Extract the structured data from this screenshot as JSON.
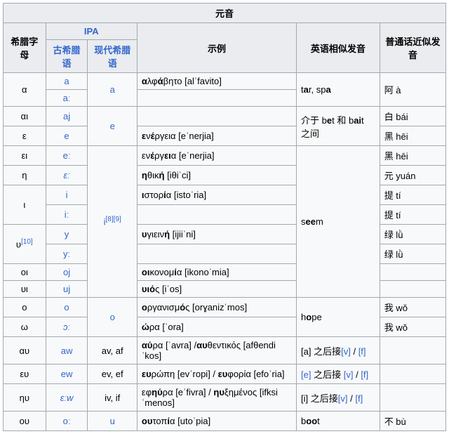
{
  "title": "元音",
  "headers": {
    "greek_letter": "希腊字母",
    "ipa": "IPA",
    "ancient": "古希腊语",
    "modern": "现代希腊语",
    "example": "示例",
    "english": "英语相似发音",
    "mandarin": "普通话近似发音"
  },
  "refs": {
    "r10": "[10]",
    "r89": "[8][9]"
  },
  "content": {
    "english_tar": "tar, spa",
    "english_bet": "介于 bet 和 bait 之间",
    "english_seem": "seem",
    "english_hope": "hope",
    "english_boot": "boot",
    "between_prefix": "介于 b",
    "between_mid": "t 和 b",
    "between_suffix": "t 之间",
    "english_1": "[a] 之后接",
    "english_2": " 之后接 ",
    "english_3": "[i] 之后接",
    "zh_a": "阿 à",
    "zh_bai": "白 bái",
    "zh_hei": "黑 hēi",
    "zh_yuan": "元 yuán",
    "zh_ti": "提 tí",
    "zh_lv": "绿 lǜ",
    "zh_wo": "我 wǒ",
    "zh_bu": "不 bù"
  },
  "links": {
    "a": "a",
    "a_long": "aː",
    "aj": "aj",
    "e": "e",
    "e_long": "eː",
    "e_ital": "ɛː",
    "i": "i",
    "i_long": "iː",
    "i_mod": "i",
    "y": "y",
    "y_long": "yː",
    "oj": "oj",
    "uj": "uj",
    "o": "o",
    "o_mod": "o",
    "o_ital": "ɔː",
    "aw": "aw",
    "ew": "ew",
    "ev": "ev, ef",
    "av": "av, af",
    "iv": "iv, if",
    "ew_ital": "ɛːw",
    "o_long": "oː",
    "u": "u",
    "v": "[v]",
    "f": "[f]",
    "e_br": "[e]",
    "slash": " / "
  },
  "rows": [
    {
      "gl": "α",
      "ex": "αλφάβητο [alˈfavito]",
      "bold_ex": [
        "",
        "α",
        "λφ",
        "ά",
        "βητο [alˈfavito]"
      ]
    },
    {
      "gl": "αι",
      "ex": ""
    },
    {
      "gl": "ε",
      "ex": "ενέργεια [eˈnerjia]",
      "bold_ex": [
        "",
        "ε",
        "ν",
        "έ",
        "ργεια [eˈnerjia]"
      ]
    },
    {
      "gl": "ει",
      "ex": "ενέργεια [eˈnerjia]",
      "bold_ex": [
        "εν",
        "έ",
        "ργ",
        "ει",
        "α [eˈnerjia]"
      ]
    },
    {
      "gl": "η",
      "ex": "ηθική [iθiˈci]",
      "bold_ex": [
        "",
        "η",
        "θικ",
        "ή",
        " [iθiˈci]"
      ]
    },
    {
      "gl": "ι",
      "ex": "ιστορία [istoˈria]",
      "bold_ex": [
        "",
        "ι",
        "στορ",
        "ί",
        "α [istoˈria]"
      ]
    },
    {
      "gl": "υ",
      "ex": "υγιεινή [ijiiˈni]",
      "bold_ex": [
        "",
        "υ",
        "γιειν",
        "ή",
        " [ijiiˈni]"
      ]
    },
    {
      "gl": "οι",
      "ex": "οικονομία [ikonoˈmia]",
      "bold_ex": [
        "",
        "οι",
        "κονομ",
        "ί",
        "α [ikonoˈmia]"
      ]
    },
    {
      "gl": "υι",
      "ex": "υιός [iˈos]",
      "bold_ex": [
        "",
        "υι",
        "",
        "ό",
        "ς [iˈos]"
      ]
    },
    {
      "gl": "ο",
      "ex": "οργανισμός [orɣanizˈmos]",
      "bold_ex": [
        "",
        "ο",
        "ργανισμ",
        "ό",
        "ς [orɣanizˈmos]"
      ]
    },
    {
      "gl": "ω",
      "ex": "ώρα [ˈora]",
      "bold_ex": [
        "",
        "ώ",
        "ρα [ˈora]",
        "",
        ""
      ]
    },
    {
      "gl": "αυ",
      "ex": "αύρα [ˈavra] /αυθεντικός [afθendiˈkos]",
      "bold_ex": [
        "",
        "αύ",
        "ρα [ˈavra] /",
        "αυ",
        "θεντικός [afθendiˈkos]"
      ]
    },
    {
      "gl": "ευ",
      "ex": "ευρώπη [evˈropi] / ευφορία [efoˈria]",
      "bold_ex": [
        "",
        "ευ",
        "ρώπη [evˈropi] / ",
        "ευ",
        "φορία [efoˈria]"
      ]
    },
    {
      "gl": "ηυ",
      "ex": "εφηύρα [eˈfivra] / ηυξημένος [ifksiˈmenos]",
      "bold_ex": [
        "εφ",
        "ηύ",
        "ρα [eˈfivra] / ",
        "ηυ",
        "ξημένος [ifksiˈmenos]"
      ]
    },
    {
      "gl": "ου",
      "ex": "ουτοπία [utoˈpia]",
      "bold_ex": [
        "",
        "ου",
        "τοπ",
        "ί",
        "α [utoˈpia]"
      ]
    }
  ]
}
